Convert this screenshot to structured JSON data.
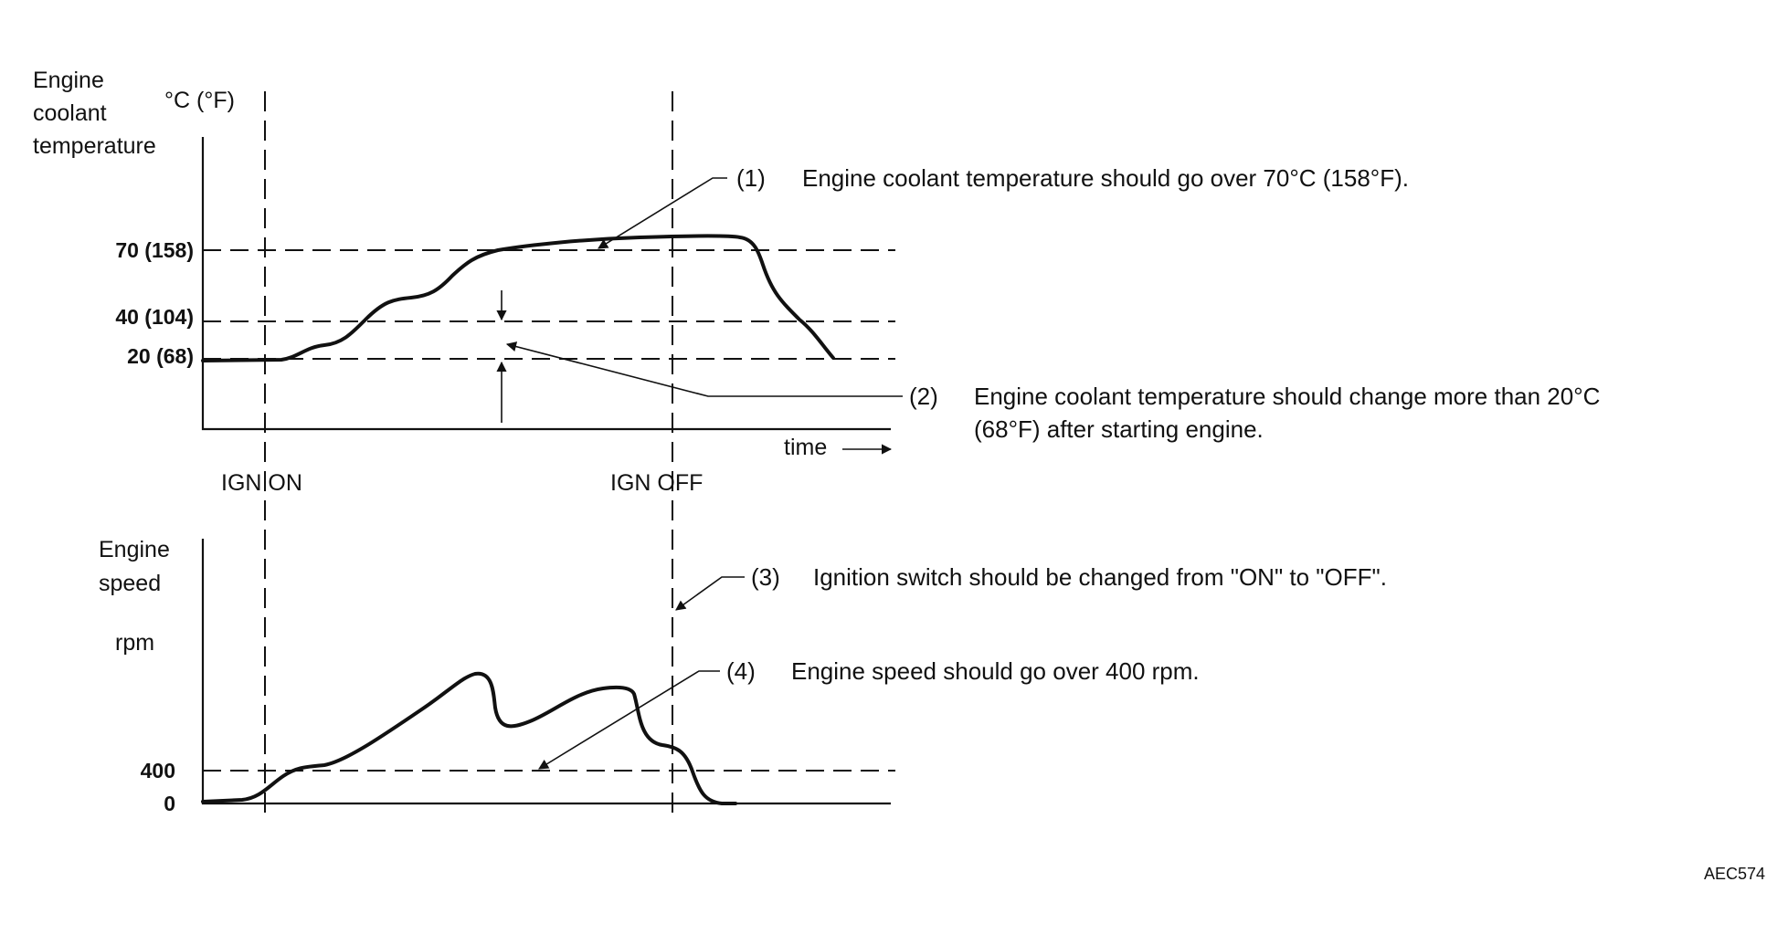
{
  "top_chart": {
    "y_title_lines": [
      "Engine",
      "coolant",
      "temperature"
    ],
    "unit": "°C (°F)",
    "ticks": [
      "70 (158)",
      "40 (104)",
      "20 (68)"
    ],
    "x_label": "time"
  },
  "events": {
    "ign_on": "IGN ON",
    "ign_off": "IGN OFF"
  },
  "bottom_chart": {
    "y_title_lines": [
      "Engine",
      "speed"
    ],
    "unit": "rpm",
    "ticks": [
      "400",
      "0"
    ]
  },
  "notes": {
    "n1_num": "(1)",
    "n1_text": "Engine coolant temperature should go over 70°C (158°F).",
    "n2_num": "(2)",
    "n2_line1": "Engine coolant temperature should change more than 20°C",
    "n2_line2": "(68°F) after starting engine.",
    "n3_num": "(3)",
    "n3_text": "Ignition switch should be changed from \"ON\" to \"OFF\".",
    "n4_num": "(4)",
    "n4_text": "Engine speed should go over 400 rpm."
  },
  "figure_code": "AEC574"
}
